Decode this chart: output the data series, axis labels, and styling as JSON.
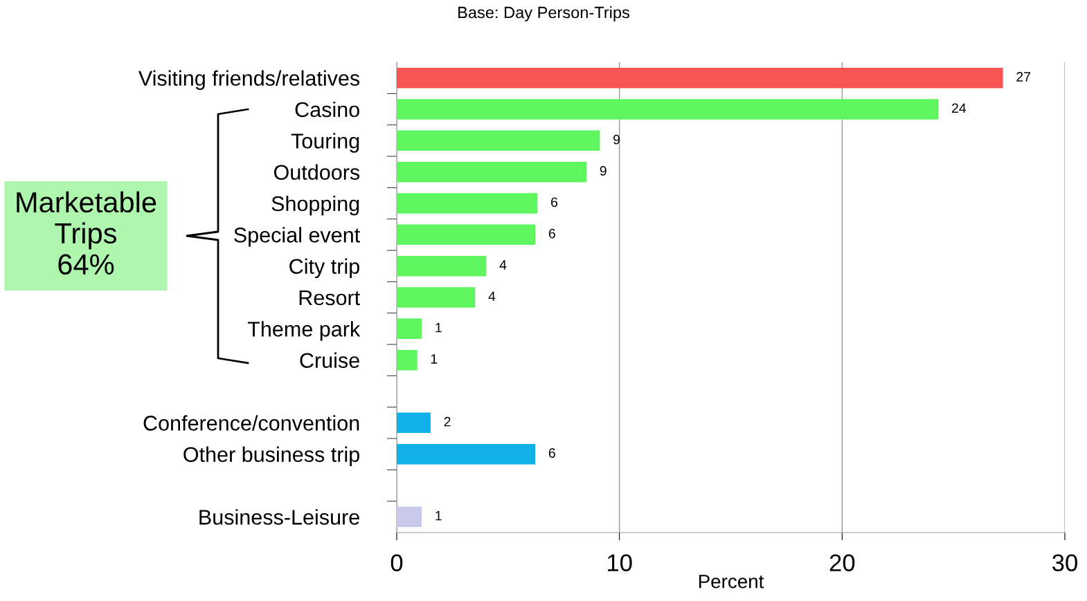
{
  "chart_data": {
    "type": "bar",
    "orientation": "horizontal",
    "title": "Base: Day Person-Trips",
    "xlabel": "Percent",
    "categories": [
      "Visiting friends/relatives",
      "Casino",
      "Touring",
      "Outdoors",
      "Shopping",
      "Special event",
      "City trip",
      "Resort",
      "Theme park",
      "Cruise",
      null,
      "Conference/convention",
      "Other business trip",
      null,
      "Business-Leisure"
    ],
    "values": [
      27.2,
      24.3,
      9.1,
      8.5,
      6.3,
      6.2,
      4.0,
      3.5,
      1.1,
      0.9,
      null,
      1.5,
      6.2,
      null,
      1.1
    ],
    "colors": [
      "#f85454",
      "#5ef55e",
      "#5ef55e",
      "#5ef55e",
      "#5ef55e",
      "#5ef55e",
      "#5ef55e",
      "#5ef55e",
      "#5ef55e",
      "#5ef55e",
      null,
      "#10b0e8",
      "#10b0e8",
      null,
      "#c8c8ec"
    ],
    "value_labels": [
      "27",
      "24",
      "9",
      "9",
      "6",
      "6",
      "4",
      "4",
      "1",
      "1",
      null,
      "2",
      "6",
      null,
      "1"
    ],
    "xlim": [
      0,
      30
    ],
    "xticks": [
      0,
      10,
      20,
      30
    ],
    "grid": "x",
    "legend": false,
    "annotations": [
      "Marketable\nTrips\n64%"
    ]
  }
}
